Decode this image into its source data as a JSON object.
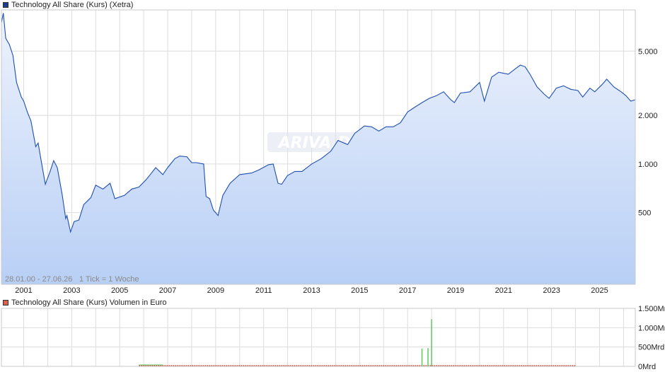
{
  "colors": {
    "price_line": "#1f4fb0",
    "area_top": "#eef3fd",
    "area_bottom": "#b8cff5",
    "grid": "#dcdcdc",
    "volume_bar": "#5cc85c",
    "volume_baseline": "#c84a3a",
    "price_swatch": "#1c3f94",
    "volume_swatch": "#d9604c"
  },
  "legend": {
    "price_label": "Technology All Share (Kurs) (Xetra)",
    "volume_label": "Technology All Share (Kurs) Volumen in Euro"
  },
  "info": {
    "range_text": "28.01.00 - 27.06.26",
    "tick_text": "1 Tick = 1 Woche"
  },
  "watermark": "ARIVA.DE",
  "chart_data": [
    {
      "type": "line",
      "name": "price",
      "y_scale": "log",
      "ylim": [
        180,
        9000
      ],
      "xlim": [
        2000.07,
        2026.49
      ],
      "yticks": [
        500,
        1000,
        2000,
        5000
      ],
      "ytick_labels": [
        "500",
        "1.000",
        "2.000",
        "5.000"
      ],
      "xticks": [
        2001,
        2003,
        2005,
        2007,
        2009,
        2011,
        2013,
        2015,
        2017,
        2019,
        2021,
        2023,
        2025
      ],
      "xtick_labels": [
        "2001",
        "2003",
        "2005",
        "2007",
        "2009",
        "2011",
        "2013",
        "2015",
        "2017",
        "2019",
        "2021",
        "2023",
        "2025"
      ],
      "grid": true,
      "x": [
        2000.07,
        2000.15,
        2000.25,
        2000.4,
        2000.55,
        2000.7,
        2000.9,
        2001.0,
        2001.15,
        2001.3,
        2001.5,
        2001.6,
        2001.75,
        2001.9,
        2002.1,
        2002.25,
        2002.4,
        2002.6,
        2002.75,
        2002.8,
        2002.95,
        2003.1,
        2003.3,
        2003.5,
        2003.8,
        2004.0,
        2004.3,
        2004.6,
        2004.8,
        2005.2,
        2005.5,
        2005.8,
        2006.1,
        2006.3,
        2006.5,
        2006.8,
        2007.0,
        2007.3,
        2007.5,
        2007.8,
        2008.0,
        2008.2,
        2008.5,
        2008.6,
        2008.75,
        2008.9,
        2009.1,
        2009.3,
        2009.6,
        2010.0,
        2010.5,
        2010.8,
        2011.2,
        2011.4,
        2011.6,
        2011.75,
        2012.0,
        2012.3,
        2012.6,
        2013.0,
        2013.4,
        2013.8,
        2014.1,
        2014.5,
        2014.8,
        2015.2,
        2015.5,
        2015.8,
        2016.1,
        2016.4,
        2016.7,
        2017.0,
        2017.3,
        2017.6,
        2017.9,
        2018.2,
        2018.5,
        2018.8,
        2018.95,
        2019.2,
        2019.6,
        2020.0,
        2020.2,
        2020.5,
        2020.8,
        2021.2,
        2021.5,
        2021.7,
        2021.9,
        2022.1,
        2022.4,
        2022.7,
        2022.9,
        2023.2,
        2023.5,
        2023.8,
        2024.1,
        2024.3,
        2024.6,
        2024.8,
        2025.1,
        2025.3,
        2025.6,
        2025.9,
        2026.1,
        2026.3,
        2026.49
      ],
      "values": [
        7500,
        8600,
        6000,
        5500,
        4700,
        3200,
        2600,
        2450,
        2100,
        1850,
        1280,
        1350,
        1000,
        750,
        900,
        1050,
        950,
        650,
        460,
        480,
        380,
        440,
        450,
        560,
        620,
        740,
        700,
        760,
        610,
        640,
        700,
        720,
        800,
        870,
        950,
        860,
        950,
        1080,
        1120,
        1110,
        1020,
        1020,
        1000,
        630,
        610,
        520,
        480,
        640,
        760,
        860,
        880,
        920,
        990,
        1000,
        760,
        750,
        850,
        900,
        900,
        1000,
        1080,
        1200,
        1400,
        1320,
        1550,
        1720,
        1700,
        1600,
        1700,
        1700,
        1800,
        2100,
        2250,
        2400,
        2550,
        2650,
        2800,
        2500,
        2400,
        2750,
        2800,
        3200,
        2450,
        3450,
        3700,
        3600,
        3900,
        4100,
        4000,
        3600,
        3000,
        2700,
        2550,
        2950,
        3050,
        2900,
        2850,
        2600,
        2950,
        2800,
        3100,
        3350,
        3000,
        2800,
        2650,
        2450,
        2500
      ]
    },
    {
      "type": "bar",
      "name": "volume",
      "ylim": [
        0,
        1500
      ],
      "yticks": [
        0,
        500,
        1000,
        1500
      ],
      "ytick_labels": [
        "0Mrd",
        "500Mrd",
        "1.000Mrd",
        "1.500Mrd"
      ],
      "x": [
        2017.6,
        2017.85,
        2018.0
      ],
      "values": [
        460,
        470,
        1220
      ]
    }
  ]
}
